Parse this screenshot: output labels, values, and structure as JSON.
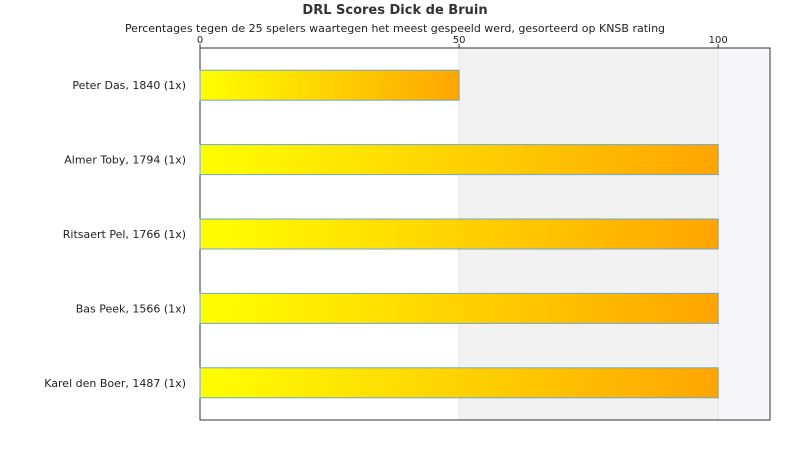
{
  "chart_data": {
    "type": "bar",
    "orientation": "horizontal",
    "title": "DRL Scores Dick de Bruin",
    "subtitle": "Percentages tegen de 25 spelers waartegen het meest gespeeld werd, gesorteerd op KNSB rating",
    "categories": [
      "Peter Das, 1840 (1x)",
      "Almer Toby, 1794 (1x)",
      "Ritsaert Pel, 1766 (1x)",
      "Bas Peek, 1566 (1x)",
      "Karel den Boer, 1487 (1x)"
    ],
    "values": [
      50,
      100,
      100,
      100,
      100
    ],
    "xlim": [
      0,
      110
    ],
    "xticks": [
      0,
      50,
      100
    ],
    "xtick_labels": [
      "0",
      "50",
      "100"
    ],
    "xaxis_position": "top",
    "grid": true,
    "legend": "none",
    "colors": {
      "bar_start": "#ffff00",
      "bar_end": "#ffa500",
      "bar_border": "#6fa8c8",
      "band_alt": "#f2f2f2",
      "band_last": "#f7f7fb",
      "axis": "#333333"
    }
  }
}
